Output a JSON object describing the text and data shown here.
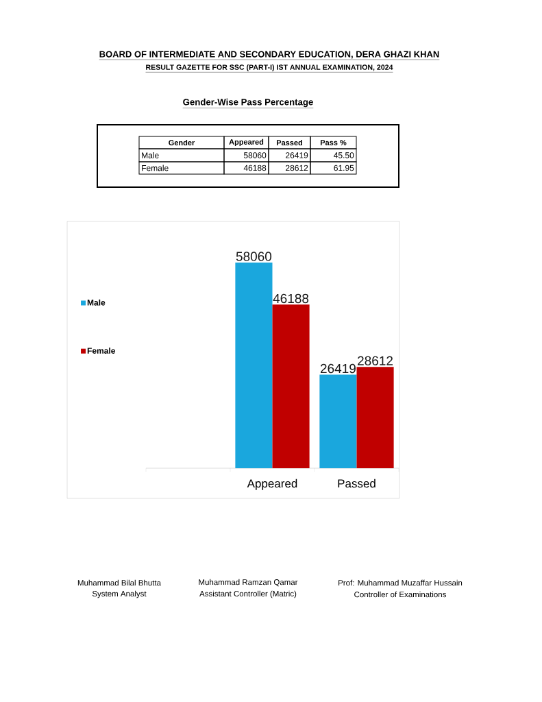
{
  "chart_data": {
    "type": "bar",
    "title": "BOARD OF INTERMEDIATE AND SECONDARY EDUCATION, DERA GHAZI KHAN",
    "subtitle": "RESULT GAZETTE FOR SSC (PART-I) IST ANNUAL EXAMINATION, 2024",
    "categories": [
      "Appeared",
      "Passed"
    ],
    "series": [
      {
        "name": "Male",
        "color": "#1aa7dd",
        "values": [
          58060,
          26419
        ]
      },
      {
        "name": "Female",
        "color": "#c00000",
        "values": [
          46188,
          28612
        ]
      }
    ],
    "data_labels": true,
    "legend": "left",
    "tick_labels": "x",
    "annotations": [
      "Gender-Wise Pass Percentage",
      "Gender",
      "Appeared",
      "Passed",
      "Pass %",
      "Male",
      "58060",
      "26419",
      "45.50",
      "Female",
      "46188",
      "28612",
      "61.95",
      "Muhammad Bilal Bhutta",
      "System Analyst",
      "Muhammad Ramzan Qamar",
      "Assistant Controller (Matric)",
      "Prof: Muhammad Muzaffar Hussain",
      "Controller of Examinations"
    ]
  }
}
